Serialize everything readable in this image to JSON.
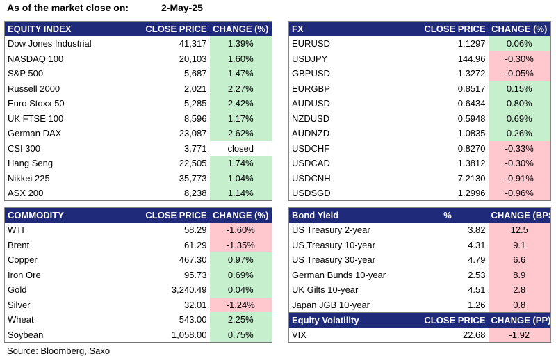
{
  "header": {
    "label": "As of the market close on:",
    "date": "2-May-25"
  },
  "equity": {
    "headers": [
      "EQUITY INDEX",
      "CLOSE PRICE",
      "CHANGE (%)"
    ],
    "rows": [
      {
        "name": "Dow Jones Industrial",
        "price": "41,317",
        "change": "1.39%",
        "dir": "pos"
      },
      {
        "name": "NASDAQ 100",
        "price": "20,103",
        "change": "1.60%",
        "dir": "pos"
      },
      {
        "name": "S&P 500",
        "price": "5,687",
        "change": "1.47%",
        "dir": "pos"
      },
      {
        "name": "Russell 2000",
        "price": "2,021",
        "change": "2.27%",
        "dir": "pos"
      },
      {
        "name": "Euro Stoxx 50",
        "price": "5,285",
        "change": "2.42%",
        "dir": "pos"
      },
      {
        "name": "UK FTSE 100",
        "price": "8,596",
        "change": "1.17%",
        "dir": "pos"
      },
      {
        "name": "German DAX",
        "price": "23,087",
        "change": "2.62%",
        "dir": "pos"
      },
      {
        "name": "CSI 300",
        "price": "3,771",
        "change": "closed",
        "dir": "none"
      },
      {
        "name": "Hang Seng",
        "price": "22,505",
        "change": "1.74%",
        "dir": "pos"
      },
      {
        "name": "Nikkei 225",
        "price": "35,773",
        "change": "1.04%",
        "dir": "pos"
      },
      {
        "name": "ASX 200",
        "price": "8,238",
        "change": "1.14%",
        "dir": "pos"
      }
    ]
  },
  "fx": {
    "headers": [
      "FX",
      "CLOSE PRICE",
      "CHANGE (%)"
    ],
    "rows": [
      {
        "name": "EURUSD",
        "price": "1.1297",
        "change": "0.06%",
        "dir": "pos"
      },
      {
        "name": "USDJPY",
        "price": "144.96",
        "change": "-0.30%",
        "dir": "neg"
      },
      {
        "name": "GBPUSD",
        "price": "1.3272",
        "change": "-0.05%",
        "dir": "neg"
      },
      {
        "name": "EURGBP",
        "price": "0.8517",
        "change": "0.15%",
        "dir": "pos"
      },
      {
        "name": "AUDUSD",
        "price": "0.6434",
        "change": "0.80%",
        "dir": "pos"
      },
      {
        "name": "NZDUSD",
        "price": "0.5948",
        "change": "0.69%",
        "dir": "pos"
      },
      {
        "name": "AUDNZD",
        "price": "1.0835",
        "change": "0.26%",
        "dir": "pos"
      },
      {
        "name": "USDCHF",
        "price": "0.8270",
        "change": "-0.33%",
        "dir": "neg"
      },
      {
        "name": "USDCAD",
        "price": "1.3812",
        "change": "-0.30%",
        "dir": "neg"
      },
      {
        "name": "USDCNH",
        "price": "7.2130",
        "change": "-0.91%",
        "dir": "neg"
      },
      {
        "name": "USDSGD",
        "price": "1.2996",
        "change": "-0.96%",
        "dir": "neg"
      }
    ]
  },
  "commodity": {
    "headers": [
      "COMMODITY",
      "CLOSE PRICE",
      "CHANGE (%)"
    ],
    "rows": [
      {
        "name": "WTI",
        "price": "58.29",
        "change": "-1.60%",
        "dir": "neg"
      },
      {
        "name": "Brent",
        "price": "61.29",
        "change": "-1.35%",
        "dir": "neg"
      },
      {
        "name": "Copper",
        "price": "467.30",
        "change": "0.97%",
        "dir": "pos"
      },
      {
        "name": "Iron Ore",
        "price": "95.73",
        "change": "0.69%",
        "dir": "pos"
      },
      {
        "name": "Gold",
        "price": "3,240.49",
        "change": "0.04%",
        "dir": "pos"
      },
      {
        "name": "Silver",
        "price": "32.01",
        "change": "-1.24%",
        "dir": "neg"
      },
      {
        "name": "Wheat",
        "price": "543.00",
        "change": "2.25%",
        "dir": "pos"
      },
      {
        "name": "Soybean",
        "price": "1,058.00",
        "change": "0.75%",
        "dir": "pos"
      }
    ]
  },
  "bonds": {
    "headers": [
      "Bond Yield",
      "%",
      "CHANGE (BPS)"
    ],
    "rows": [
      {
        "name": "US Treasury 2-year",
        "price": "3.82",
        "change": "12.5",
        "dir": "neg"
      },
      {
        "name": "US Treasury 10-year",
        "price": "4.31",
        "change": "9.1",
        "dir": "neg"
      },
      {
        "name": "US Treasury 30-year",
        "price": "4.79",
        "change": "6.6",
        "dir": "neg"
      },
      {
        "name": "German Bunds 10-year",
        "price": "2.53",
        "change": "8.9",
        "dir": "neg"
      },
      {
        "name": "UK Gilts 10-year",
        "price": "4.51",
        "change": "2.8",
        "dir": "neg"
      },
      {
        "name": "Japan JGB 10-year",
        "price": "1.26",
        "change": "0.8",
        "dir": "neg"
      }
    ]
  },
  "volatility": {
    "headers": [
      "Equity Volatility",
      "CLOSE PRICE",
      "CHANGE (PP)"
    ],
    "rows": [
      {
        "name": "VIX",
        "price": "22.68",
        "change": "-1.92",
        "dir": "neg"
      }
    ]
  },
  "footer": {
    "source": "Source: Bloomberg, Saxo"
  },
  "colors": {
    "header_bg": "#1f2a7a",
    "positive": "#c6efce",
    "negative": "#ffc7ce"
  }
}
